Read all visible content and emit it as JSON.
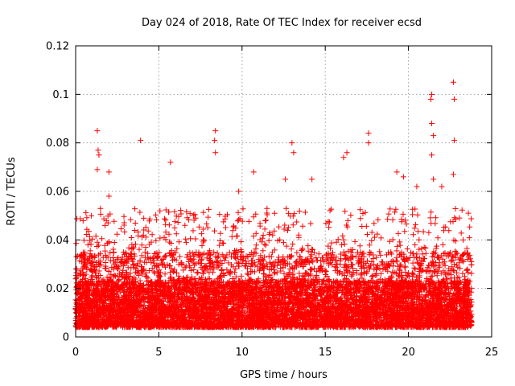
{
  "chart_data": {
    "type": "scatter",
    "title": "Day 024 of 2018, Rate Of TEC Index for receiver ecsd",
    "xlabel": "GPS time / hours",
    "ylabel": "ROTI / TECUs",
    "xlim": [
      0,
      25
    ],
    "ylim": [
      0,
      0.12
    ],
    "x_ticks": [
      0,
      5,
      10,
      15,
      20,
      25
    ],
    "x_tick_labels": [
      "0",
      "5",
      "10",
      "15",
      "20",
      "25"
    ],
    "y_ticks": [
      0,
      0.02,
      0.04,
      0.06,
      0.08,
      0.1,
      0.12
    ],
    "y_tick_labels": [
      "0",
      "0.02",
      "0.04",
      "0.06",
      "0.08",
      "0.1",
      "0.12"
    ],
    "grid": true,
    "marker": "+",
    "color": "#ff0000",
    "series": [
      {
        "name": "ROTI",
        "x_range_hours": [
          0,
          23.8
        ],
        "baseline_median": 0.012,
        "typical_upper": 0.035,
        "notable_points": [
          {
            "x": 1.3,
            "y": 0.085
          },
          {
            "x": 1.35,
            "y": 0.077
          },
          {
            "x": 1.4,
            "y": 0.075
          },
          {
            "x": 1.3,
            "y": 0.069
          },
          {
            "x": 2.0,
            "y": 0.068
          },
          {
            "x": 2.0,
            "y": 0.058
          },
          {
            "x": 3.9,
            "y": 0.081
          },
          {
            "x": 5.7,
            "y": 0.072
          },
          {
            "x": 8.4,
            "y": 0.085
          },
          {
            "x": 8.35,
            "y": 0.081
          },
          {
            "x": 8.4,
            "y": 0.076
          },
          {
            "x": 9.8,
            "y": 0.06
          },
          {
            "x": 10.7,
            "y": 0.068
          },
          {
            "x": 12.6,
            "y": 0.065
          },
          {
            "x": 13.0,
            "y": 0.08
          },
          {
            "x": 13.1,
            "y": 0.076
          },
          {
            "x": 14.2,
            "y": 0.065
          },
          {
            "x": 16.1,
            "y": 0.074
          },
          {
            "x": 16.3,
            "y": 0.076
          },
          {
            "x": 17.6,
            "y": 0.084
          },
          {
            "x": 17.6,
            "y": 0.08
          },
          {
            "x": 19.3,
            "y": 0.068
          },
          {
            "x": 19.7,
            "y": 0.066
          },
          {
            "x": 20.5,
            "y": 0.062
          },
          {
            "x": 21.4,
            "y": 0.1
          },
          {
            "x": 21.35,
            "y": 0.098
          },
          {
            "x": 21.4,
            "y": 0.088
          },
          {
            "x": 21.5,
            "y": 0.083
          },
          {
            "x": 21.4,
            "y": 0.075
          },
          {
            "x": 21.5,
            "y": 0.065
          },
          {
            "x": 22.0,
            "y": 0.062
          },
          {
            "x": 22.7,
            "y": 0.105
          },
          {
            "x": 22.75,
            "y": 0.098
          },
          {
            "x": 22.75,
            "y": 0.081
          },
          {
            "x": 22.7,
            "y": 0.067
          },
          {
            "x": 23.6,
            "y": 0.051
          }
        ]
      }
    ]
  }
}
